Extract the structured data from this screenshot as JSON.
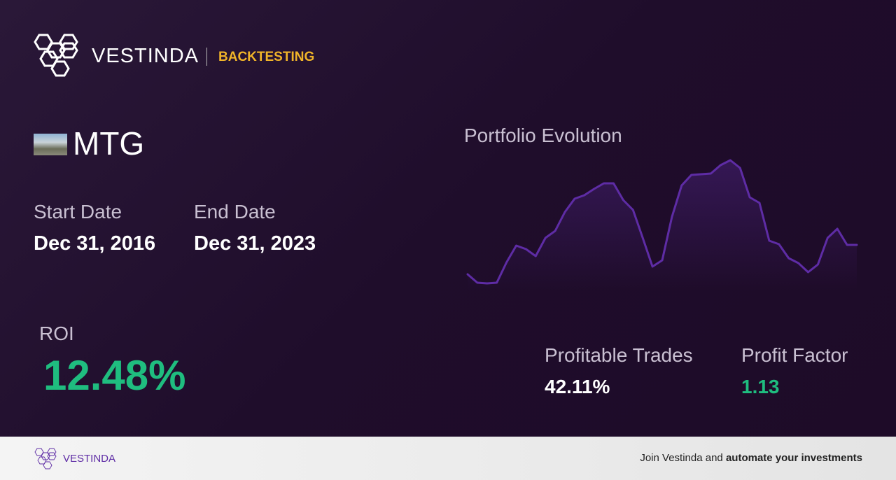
{
  "header": {
    "brand": "VESTINDA",
    "section": "BACKTESTING"
  },
  "ticker": "MTG",
  "start_date": {
    "label": "Start Date",
    "value": "Dec 31, 2016"
  },
  "end_date": {
    "label": "End Date",
    "value": "Dec 31, 2023"
  },
  "roi": {
    "label": "ROI",
    "value": "12.48%"
  },
  "profitable_trades": {
    "label": "Profitable Trades",
    "value": "42.11%"
  },
  "profit_factor": {
    "label": "Profit Factor",
    "value": "1.13"
  },
  "chart_data": {
    "type": "line",
    "title": "Portfolio Evolution",
    "color": "#5e2ca5",
    "values": [
      13,
      1,
      0,
      1,
      30,
      54,
      49,
      39,
      65,
      75,
      102,
      121,
      126,
      135,
      143,
      143,
      119,
      105,
      65,
      24,
      33,
      95,
      140,
      155,
      156,
      157,
      169,
      176,
      165,
      123,
      115,
      61,
      56,
      36,
      29,
      16,
      27,
      65,
      78,
      55,
      55
    ]
  },
  "footer": {
    "brand": "VESTINDA",
    "text": "Join Vestinda and",
    "emphasis": "automate your investments"
  }
}
